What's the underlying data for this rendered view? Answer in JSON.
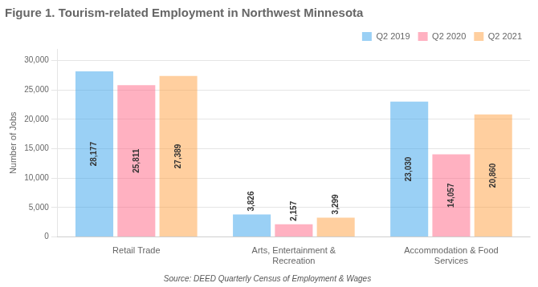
{
  "chart_data": {
    "type": "bar",
    "title": "Figure 1. Tourism-related Employment in Northwest Minnesota",
    "annotations": [
      "Source: DEED Quarterly Census of Employment & Wages"
    ],
    "ylabel": "Number of Jobs",
    "categories": [
      "Retail Trade",
      "Arts, Entertainment &\nRecreation",
      "Accommodation & Food\nServices"
    ],
    "series": [
      {
        "name": "Q2 2019",
        "values": [
          28177,
          3826,
          23030
        ],
        "value_labels": [
          "28,177",
          "3,826",
          "23,030"
        ]
      },
      {
        "name": "Q2 2020",
        "values": [
          25811,
          2157,
          14057
        ],
        "value_labels": [
          "25,811",
          "2,157",
          "14,057"
        ]
      },
      {
        "name": "Q2 2021",
        "values": [
          27389,
          3299,
          20860
        ],
        "value_labels": [
          "27,389",
          "3,299",
          "20,860"
        ]
      }
    ],
    "ylim": [
      0,
      32000
    ],
    "yticks": [
      0,
      {
        "value": 5000,
        "label": "5,000"
      },
      {
        "value": 10000,
        "label": "10,000"
      },
      {
        "value": 15000,
        "label": "15,000"
      },
      {
        "value": 20000,
        "label": "20,000"
      },
      {
        "value": 25000,
        "label": "25,000"
      },
      {
        "value": 30000,
        "label": "30,000"
      }
    ],
    "grid": true,
    "legend": "top right",
    "data_labels": true
  }
}
